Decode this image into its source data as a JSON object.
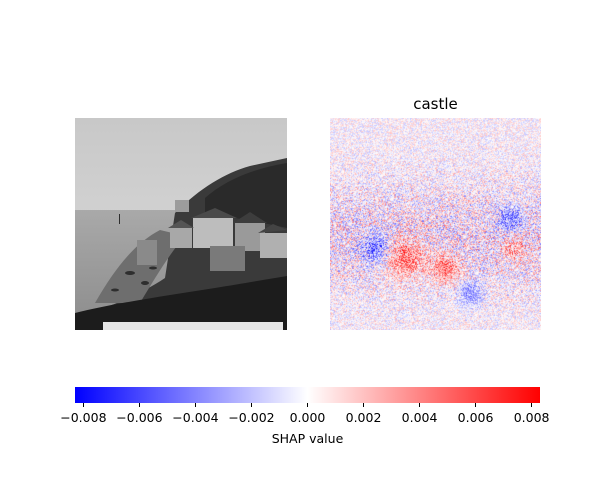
{
  "chart_data": {
    "type": "heatmap",
    "panels": [
      {
        "title": "",
        "content": "grayscale photograph of coastal town with houses on hillside"
      },
      {
        "title": "castle",
        "content": "SHAP attribution map (red positive, blue negative)"
      }
    ],
    "colorbar": {
      "label": "SHAP value",
      "range": [
        -0.0083,
        0.0083
      ],
      "ticks": [
        -0.008,
        -0.006,
        -0.004,
        -0.002,
        0.0,
        0.002,
        0.004,
        0.006,
        0.008
      ],
      "tick_labels": [
        "−0.008",
        "−0.006",
        "−0.004",
        "−0.002",
        "0.000",
        "0.002",
        "0.004",
        "0.006",
        "0.008"
      ],
      "cmap": {
        "low": "#0000ff",
        "mid": "#ffffff",
        "high": "#ff0000"
      }
    }
  }
}
